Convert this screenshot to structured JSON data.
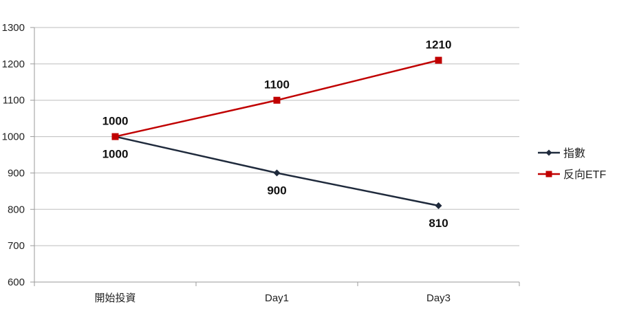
{
  "chart_data": {
    "type": "line",
    "title": "",
    "xlabel": "",
    "ylabel": "",
    "categories": [
      "開始投資",
      "Day1",
      "Day3"
    ],
    "ylim": [
      600,
      1300
    ],
    "yticks": [
      600,
      700,
      800,
      900,
      1000,
      1100,
      1200,
      1300
    ],
    "grid": "horizontal",
    "legend_position": "right",
    "series": [
      {
        "name": "指數",
        "values": [
          1000,
          900,
          810
        ],
        "labels": [
          "1000",
          "900",
          "810"
        ],
        "color": "#1f2a3c",
        "marker": "diamond",
        "label_position": "below"
      },
      {
        "name": "反向ETF",
        "values": [
          1000,
          1100,
          1210
        ],
        "labels": [
          "1000",
          "1100",
          "1210"
        ],
        "color": "#c00000",
        "marker": "square",
        "label_position": "above"
      }
    ]
  }
}
